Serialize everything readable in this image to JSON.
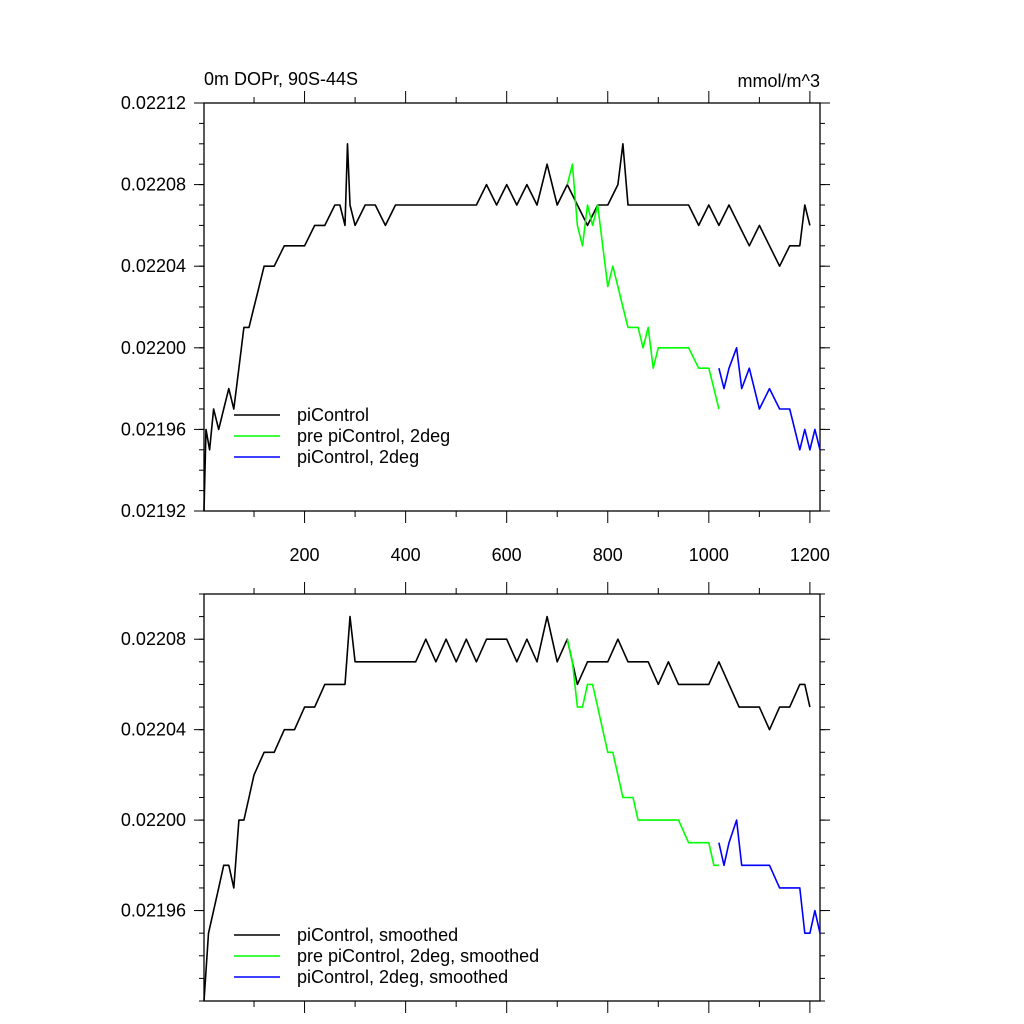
{
  "chart_data": [
    {
      "type": "line",
      "title": "0m DOPr, 90S-44S",
      "units": "mmol/m^3",
      "xlim": [
        1,
        1220
      ],
      "ylim": [
        0.02192,
        0.02212
      ],
      "xticks": [
        200,
        400,
        600,
        800,
        1000,
        1200
      ],
      "xtick_labels": [
        "200",
        "400",
        "600",
        "800",
        "1000",
        "1200"
      ],
      "yticks": [
        0.02192,
        0.02196,
        0.022,
        0.02204,
        0.02208,
        0.02212
      ],
      "ytick_labels": [
        "0.02192",
        "0.02196",
        "0.02200",
        "0.02204",
        "0.02208",
        "0.02212"
      ],
      "legend_position": "bottom-left",
      "series": [
        {
          "name": "piControl",
          "color": "#000000",
          "points": [
            [
              1,
              0.02192
            ],
            [
              5,
              0.02196
            ],
            [
              12,
              0.02195
            ],
            [
              20,
              0.02197
            ],
            [
              30,
              0.02196
            ],
            [
              40,
              0.02197
            ],
            [
              50,
              0.02198
            ],
            [
              60,
              0.02197
            ],
            [
              70,
              0.02199
            ],
            [
              80,
              0.02201
            ],
            [
              90,
              0.02201
            ],
            [
              100,
              0.02202
            ],
            [
              110,
              0.02203
            ],
            [
              120,
              0.02204
            ],
            [
              140,
              0.02204
            ],
            [
              160,
              0.02205
            ],
            [
              180,
              0.02205
            ],
            [
              200,
              0.02205
            ],
            [
              220,
              0.02206
            ],
            [
              240,
              0.02206
            ],
            [
              260,
              0.02207
            ],
            [
              270,
              0.02207
            ],
            [
              280,
              0.02206
            ],
            [
              285,
              0.0221
            ],
            [
              290,
              0.02207
            ],
            [
              300,
              0.02206
            ],
            [
              320,
              0.02207
            ],
            [
              340,
              0.02207
            ],
            [
              360,
              0.02206
            ],
            [
              380,
              0.02207
            ],
            [
              400,
              0.02207
            ],
            [
              420,
              0.02207
            ],
            [
              440,
              0.02207
            ],
            [
              460,
              0.02207
            ],
            [
              480,
              0.02207
            ],
            [
              500,
              0.02207
            ],
            [
              520,
              0.02207
            ],
            [
              540,
              0.02207
            ],
            [
              560,
              0.02208
            ],
            [
              580,
              0.02207
            ],
            [
              600,
              0.02208
            ],
            [
              620,
              0.02207
            ],
            [
              640,
              0.02208
            ],
            [
              660,
              0.02207
            ],
            [
              680,
              0.02209
            ],
            [
              700,
              0.02207
            ],
            [
              720,
              0.02208
            ],
            [
              740,
              0.02207
            ],
            [
              760,
              0.02206
            ],
            [
              780,
              0.02207
            ],
            [
              800,
              0.02207
            ],
            [
              820,
              0.02208
            ],
            [
              830,
              0.0221
            ],
            [
              840,
              0.02207
            ],
            [
              860,
              0.02207
            ],
            [
              880,
              0.02207
            ],
            [
              900,
              0.02207
            ],
            [
              920,
              0.02207
            ],
            [
              940,
              0.02207
            ],
            [
              960,
              0.02207
            ],
            [
              980,
              0.02206
            ],
            [
              1000,
              0.02207
            ],
            [
              1020,
              0.02206
            ],
            [
              1040,
              0.02207
            ],
            [
              1060,
              0.02206
            ],
            [
              1080,
              0.02205
            ],
            [
              1100,
              0.02206
            ],
            [
              1120,
              0.02205
            ],
            [
              1140,
              0.02204
            ],
            [
              1160,
              0.02205
            ],
            [
              1180,
              0.02205
            ],
            [
              1190,
              0.02207
            ],
            [
              1200,
              0.02206
            ]
          ]
        },
        {
          "name": "pre piControl, 2deg",
          "color": "#00ff00",
          "points": [
            [
              720,
              0.02208
            ],
            [
              730,
              0.02209
            ],
            [
              740,
              0.02206
            ],
            [
              750,
              0.02205
            ],
            [
              760,
              0.02207
            ],
            [
              770,
              0.02206
            ],
            [
              780,
              0.02207
            ],
            [
              790,
              0.02205
            ],
            [
              800,
              0.02203
            ],
            [
              810,
              0.02204
            ],
            [
              820,
              0.02203
            ],
            [
              830,
              0.02202
            ],
            [
              840,
              0.02201
            ],
            [
              850,
              0.02201
            ],
            [
              860,
              0.02201
            ],
            [
              870,
              0.022
            ],
            [
              880,
              0.02201
            ],
            [
              890,
              0.02199
            ],
            [
              900,
              0.022
            ],
            [
              920,
              0.022
            ],
            [
              940,
              0.022
            ],
            [
              960,
              0.022
            ],
            [
              980,
              0.02199
            ],
            [
              1000,
              0.02199
            ],
            [
              1010,
              0.02198
            ],
            [
              1020,
              0.02197
            ]
          ]
        },
        {
          "name": "piControl, 2deg",
          "color": "#0000ff",
          "points": [
            [
              1020,
              0.02199
            ],
            [
              1030,
              0.02198
            ],
            [
              1040,
              0.02199
            ],
            [
              1055,
              0.022
            ],
            [
              1065,
              0.02198
            ],
            [
              1080,
              0.02199
            ],
            [
              1100,
              0.02197
            ],
            [
              1120,
              0.02198
            ],
            [
              1140,
              0.02197
            ],
            [
              1160,
              0.02197
            ],
            [
              1180,
              0.02195
            ],
            [
              1190,
              0.02196
            ],
            [
              1200,
              0.02195
            ],
            [
              1210,
              0.02196
            ],
            [
              1220,
              0.02195
            ]
          ]
        }
      ]
    },
    {
      "type": "line",
      "xlim": [
        1,
        1220
      ],
      "ylim": [
        0.02192,
        0.0221
      ],
      "xticks": [
        200,
        400,
        600,
        800,
        1000,
        1200
      ],
      "yticks": [
        0.02196,
        0.022,
        0.02204,
        0.02208
      ],
      "ytick_labels": [
        "0.02196",
        "0.02200",
        "0.02204",
        "0.02208"
      ],
      "legend_position": "bottom-left",
      "series": [
        {
          "name": "piControl, smoothed",
          "color": "#000000",
          "points": [
            [
              1,
              0.02192
            ],
            [
              10,
              0.02195
            ],
            [
              20,
              0.02196
            ],
            [
              30,
              0.02197
            ],
            [
              40,
              0.02198
            ],
            [
              50,
              0.02198
            ],
            [
              60,
              0.02197
            ],
            [
              70,
              0.022
            ],
            [
              80,
              0.022
            ],
            [
              90,
              0.02201
            ],
            [
              100,
              0.02202
            ],
            [
              120,
              0.02203
            ],
            [
              140,
              0.02203
            ],
            [
              160,
              0.02204
            ],
            [
              180,
              0.02204
            ],
            [
              200,
              0.02205
            ],
            [
              220,
              0.02205
            ],
            [
              240,
              0.02206
            ],
            [
              260,
              0.02206
            ],
            [
              280,
              0.02206
            ],
            [
              290,
              0.02209
            ],
            [
              300,
              0.02207
            ],
            [
              320,
              0.02207
            ],
            [
              340,
              0.02207
            ],
            [
              360,
              0.02207
            ],
            [
              380,
              0.02207
            ],
            [
              400,
              0.02207
            ],
            [
              420,
              0.02207
            ],
            [
              440,
              0.02208
            ],
            [
              460,
              0.02207
            ],
            [
              480,
              0.02208
            ],
            [
              500,
              0.02207
            ],
            [
              520,
              0.02208
            ],
            [
              540,
              0.02207
            ],
            [
              560,
              0.02208
            ],
            [
              580,
              0.02208
            ],
            [
              600,
              0.02208
            ],
            [
              620,
              0.02207
            ],
            [
              640,
              0.02208
            ],
            [
              660,
              0.02207
            ],
            [
              680,
              0.02209
            ],
            [
              700,
              0.02207
            ],
            [
              720,
              0.02208
            ],
            [
              740,
              0.02206
            ],
            [
              760,
              0.02207
            ],
            [
              780,
              0.02207
            ],
            [
              800,
              0.02207
            ],
            [
              820,
              0.02208
            ],
            [
              840,
              0.02207
            ],
            [
              860,
              0.02207
            ],
            [
              880,
              0.02207
            ],
            [
              900,
              0.02206
            ],
            [
              920,
              0.02207
            ],
            [
              940,
              0.02206
            ],
            [
              960,
              0.02206
            ],
            [
              980,
              0.02206
            ],
            [
              1000,
              0.02206
            ],
            [
              1020,
              0.02207
            ],
            [
              1040,
              0.02206
            ],
            [
              1060,
              0.02205
            ],
            [
              1080,
              0.02205
            ],
            [
              1100,
              0.02205
            ],
            [
              1120,
              0.02204
            ],
            [
              1140,
              0.02205
            ],
            [
              1160,
              0.02205
            ],
            [
              1180,
              0.02206
            ],
            [
              1190,
              0.02206
            ],
            [
              1200,
              0.02205
            ]
          ]
        },
        {
          "name": "pre piControl, 2deg, smoothed",
          "color": "#00ff00",
          "points": [
            [
              720,
              0.02208
            ],
            [
              730,
              0.02207
            ],
            [
              740,
              0.02205
            ],
            [
              750,
              0.02205
            ],
            [
              760,
              0.02206
            ],
            [
              770,
              0.02206
            ],
            [
              780,
              0.02205
            ],
            [
              790,
              0.02204
            ],
            [
              800,
              0.02203
            ],
            [
              810,
              0.02203
            ],
            [
              820,
              0.02202
            ],
            [
              830,
              0.02201
            ],
            [
              840,
              0.02201
            ],
            [
              850,
              0.02201
            ],
            [
              860,
              0.022
            ],
            [
              870,
              0.022
            ],
            [
              880,
              0.022
            ],
            [
              890,
              0.022
            ],
            [
              900,
              0.022
            ],
            [
              920,
              0.022
            ],
            [
              940,
              0.022
            ],
            [
              960,
              0.02199
            ],
            [
              980,
              0.02199
            ],
            [
              1000,
              0.02199
            ],
            [
              1010,
              0.02198
            ],
            [
              1020,
              0.02198
            ]
          ]
        },
        {
          "name": "piControl, 2deg, smoothed",
          "color": "#0000ff",
          "points": [
            [
              1020,
              0.02199
            ],
            [
              1030,
              0.02198
            ],
            [
              1040,
              0.02199
            ],
            [
              1055,
              0.022
            ],
            [
              1065,
              0.02198
            ],
            [
              1080,
              0.02198
            ],
            [
              1100,
              0.02198
            ],
            [
              1120,
              0.02198
            ],
            [
              1140,
              0.02197
            ],
            [
              1160,
              0.02197
            ],
            [
              1180,
              0.02197
            ],
            [
              1190,
              0.02195
            ],
            [
              1200,
              0.02195
            ],
            [
              1210,
              0.02196
            ],
            [
              1220,
              0.02195
            ]
          ]
        }
      ]
    }
  ]
}
